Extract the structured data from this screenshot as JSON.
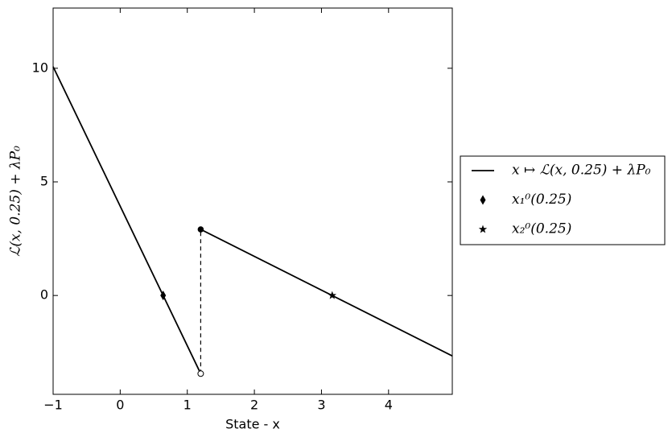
{
  "chart_data": {
    "type": "line",
    "x_label": "State - x",
    "y_label": "ℒ(x, 0.25) + λP₀",
    "xlim": [
      -1,
      4.95
    ],
    "ylim": [
      -4.35,
      12.65
    ],
    "xticks": [
      {
        "value": -1,
        "label": "−1"
      },
      0,
      1,
      2,
      3,
      4
    ],
    "yticks": [
      0,
      5,
      10
    ],
    "series": [
      {
        "name": "x ↦ ℒ(x, 0.25) + λP₀",
        "color": "#000000",
        "marker": "line",
        "x": [
          -1,
          1.2,
          1.2,
          1.2,
          4.95
        ],
        "values": [
          10.07,
          -3.44,
          null,
          2.91,
          -2.66
        ]
      },
      {
        "name": "x₁⁰(0.25)",
        "color": "#000000",
        "marker": "diamond",
        "x": [
          0.64
        ],
        "values": [
          0
        ]
      },
      {
        "name": "x₂⁰(0.25)",
        "color": "#000000",
        "marker": "star",
        "x": [
          3.16
        ],
        "values": [
          0
        ]
      }
    ],
    "jump": {
      "x": 1.2,
      "values": [
        -3.44,
        2.91
      ]
    }
  }
}
